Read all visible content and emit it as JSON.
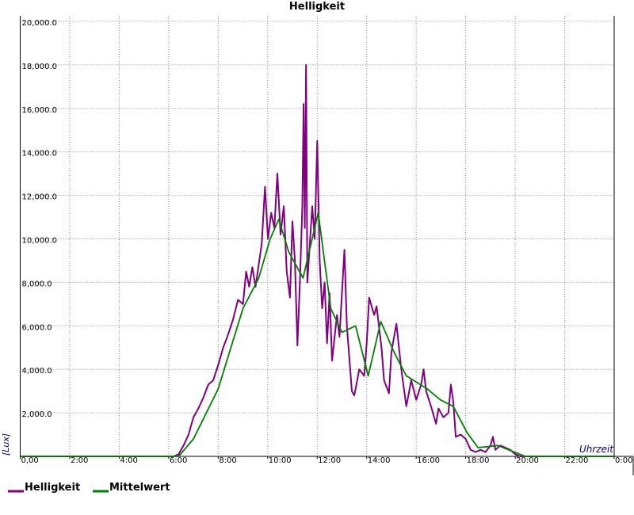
{
  "chart_data": {
    "type": "line",
    "title": "Helligkeit",
    "ylabel": "[Lux]",
    "xlabel": "Uhrzeit",
    "xlim": [
      0,
      24
    ],
    "ylim": [
      0,
      20000
    ],
    "grid": true,
    "legend": "bottom-left",
    "xticks": [
      {
        "value": 0,
        "label": "0,00"
      },
      {
        "value": 2,
        "label": "2:00"
      },
      {
        "value": 4,
        "label": "4:00"
      },
      {
        "value": 6,
        "label": "6:00"
      },
      {
        "value": 8,
        "label": "8:00"
      },
      {
        "value": 10,
        "label": "10:00"
      },
      {
        "value": 12,
        "label": "12:00"
      },
      {
        "value": 14,
        "label": "14:00"
      },
      {
        "value": 16,
        "label": "16:00"
      },
      {
        "value": 18,
        "label": "18:00"
      },
      {
        "value": 20,
        "label": "20:00"
      },
      {
        "value": 22,
        "label": "22:00"
      },
      {
        "value": 24,
        "label": "0:00"
      }
    ],
    "yticks": [
      {
        "value": 2000,
        "label": "2,000.0"
      },
      {
        "value": 4000,
        "label": "4,000.0"
      },
      {
        "value": 6000,
        "label": "6,000.0"
      },
      {
        "value": 8000,
        "label": "8,000.0"
      },
      {
        "value": 10000,
        "label": "10,000.0"
      },
      {
        "value": 12000,
        "label": "12,000.0"
      },
      {
        "value": 14000,
        "label": "14,000.0"
      },
      {
        "value": 16000,
        "label": "16,000.0"
      },
      {
        "value": 18000,
        "label": "18,000.0"
      },
      {
        "value": 20000,
        "label": "20,000.0"
      }
    ],
    "series": [
      {
        "name": "Helligkeit",
        "color": "#800080",
        "x": [
          0,
          6.0,
          6.2,
          6.4,
          6.6,
          6.8,
          7.0,
          7.2,
          7.4,
          7.6,
          7.8,
          8.0,
          8.2,
          8.4,
          8.6,
          8.8,
          9.0,
          9.13,
          9.25,
          9.38,
          9.51,
          9.76,
          9.89,
          10.01,
          10.14,
          10.27,
          10.39,
          10.52,
          10.65,
          10.77,
          10.9,
          11.0,
          11.1,
          11.2,
          11.3,
          11.4,
          11.45,
          11.5,
          11.55,
          11.6,
          11.8,
          11.9,
          12.0,
          12.1,
          12.2,
          12.3,
          12.4,
          12.5,
          12.6,
          12.8,
          12.9,
          13.1,
          13.2,
          13.4,
          13.5,
          13.7,
          13.9,
          14.0,
          14.1,
          14.3,
          14.4,
          14.6,
          14.7,
          14.9,
          15.0,
          15.2,
          15.4,
          15.6,
          15.8,
          16.0,
          16.2,
          16.3,
          16.4,
          16.6,
          16.8,
          16.9,
          17.1,
          17.3,
          17.4,
          17.5,
          17.6,
          17.8,
          18.0,
          18.2,
          18.4,
          18.6,
          18.8,
          19.0,
          19.1,
          19.2,
          19.4,
          19.6,
          19.8,
          20.0,
          20.2,
          24
        ],
        "values": [
          0,
          0,
          0,
          100,
          500,
          1000,
          1800,
          2200,
          2700,
          3300,
          3500,
          4200,
          5000,
          5600,
          6300,
          7200,
          7000,
          8500,
          7800,
          8700,
          7800,
          9800,
          12400,
          10000,
          11200,
          10500,
          13000,
          10200,
          11500,
          8500,
          7300,
          10800,
          9000,
          5100,
          8000,
          11500,
          16200,
          10500,
          18000,
          8000,
          11500,
          10000,
          14500,
          9000,
          6800,
          8000,
          5200,
          7500,
          4400,
          6500,
          5500,
          9500,
          6000,
          3000,
          2800,
          4000,
          3700,
          5200,
          7300,
          6500,
          6900,
          5000,
          3500,
          2900,
          4800,
          6100,
          4000,
          2300,
          3500,
          2600,
          3300,
          4000,
          3000,
          2300,
          1500,
          2200,
          1800,
          2000,
          3300,
          2500,
          900,
          1000,
          800,
          300,
          200,
          300,
          200,
          500,
          900,
          300,
          500,
          400,
          300,
          100,
          0,
          0
        ]
      },
      {
        "name": "Mittelwert",
        "color": "#008000",
        "x": [
          0,
          6.4,
          7.0,
          8.0,
          9.0,
          9.64,
          10.1,
          10.45,
          10.85,
          11.43,
          12.04,
          12.55,
          13.0,
          13.55,
          14.06,
          14.57,
          15.1,
          15.6,
          16.45,
          16.97,
          17.5,
          18.05,
          18.5,
          19.3,
          20.4,
          24
        ],
        "values": [
          0,
          0,
          800,
          3100,
          6800,
          8200,
          10000,
          10900,
          9400,
          8200,
          11200,
          6800,
          5700,
          6000,
          3700,
          6200,
          4800,
          3700,
          3100,
          2600,
          2300,
          1100,
          400,
          500,
          0,
          0
        ]
      }
    ]
  }
}
